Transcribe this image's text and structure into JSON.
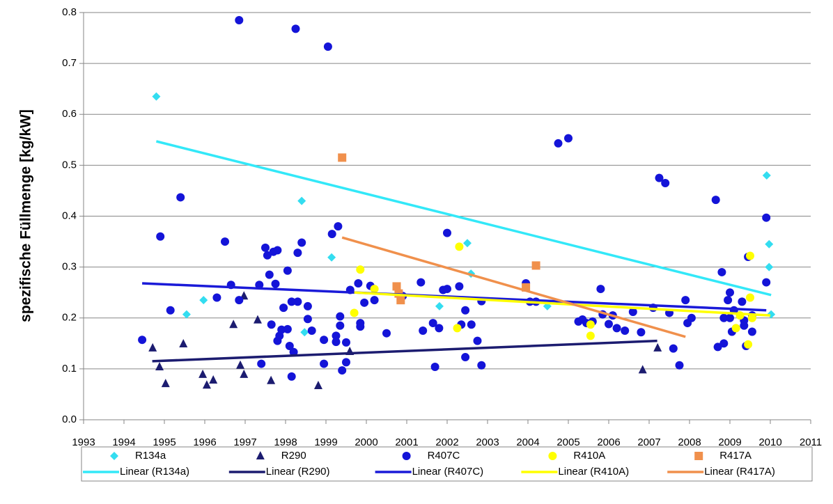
{
  "chart_data": {
    "type": "scatter",
    "y_label": "spezifische Füllmenge [kg/kW]",
    "xlim": [
      1993,
      2011
    ],
    "xticks": [
      1993,
      1994,
      1995,
      1996,
      1997,
      1998,
      1999,
      2000,
      2001,
      2002,
      2003,
      2004,
      2005,
      2006,
      2007,
      2008,
      2009,
      2010,
      2011
    ],
    "ylim": [
      0,
      0.8
    ],
    "yticks": [
      {
        "value": 0,
        "label": "0.0"
      },
      0.1,
      0.2,
      0.3,
      0.4,
      0.5,
      0.6,
      0.7,
      0.8
    ],
    "grid": true,
    "legend": "bottom",
    "series": [
      {
        "name": "R134a",
        "color": "#33ddf0",
        "marker": "diamond",
        "x": [
          1994.8,
          1995.55,
          1995.97,
          1998.4,
          1998.47,
          1999.14,
          2001.81,
          2002.5,
          2002.59,
          2004.48,
          2009.91,
          2009.97,
          2009.97,
          2010.02
        ],
        "values": [
          0.635,
          0.207,
          0.235,
          0.43,
          0.172,
          0.319,
          0.223,
          0.347,
          0.287,
          0.223,
          0.48,
          0.345,
          0.3,
          0.207
        ]
      },
      {
        "name": "R290",
        "color": "#1c1c70",
        "marker": "triangle",
        "x": [
          1994.71,
          1994.88,
          1995.03,
          1995.47,
          1995.95,
          1996.05,
          1996.21,
          1996.71,
          1996.88,
          1996.97,
          1996.97,
          1997.31,
          1997.64,
          1998.81,
          1999.59,
          2006.84,
          2007.21
        ],
        "values": [
          0.141,
          0.104,
          0.071,
          0.149,
          0.089,
          0.068,
          0.078,
          0.187,
          0.107,
          0.243,
          0.089,
          0.196,
          0.077,
          0.067,
          0.134,
          0.098,
          0.141
        ]
      },
      {
        "name": "R407C",
        "color": "#1414d8",
        "marker": "circle",
        "x": [
          1994.45,
          1994.9,
          1995.15,
          1995.4,
          1996.3,
          1996.5,
          1996.65,
          1996.85,
          1996.85,
          1997.35,
          1997.4,
          1997.5,
          1997.55,
          1997.6,
          1997.65,
          1997.7,
          1997.75,
          1997.8,
          1997.8,
          1997.85,
          1997.9,
          1997.95,
          1998.05,
          1998.05,
          1998.1,
          1998.15,
          1998.15,
          1998.2,
          1998.25,
          1998.3,
          1998.3,
          1998.4,
          1998.55,
          1998.55,
          1998.65,
          1998.95,
          1998.95,
          1999.05,
          1999.15,
          1999.25,
          1999.25,
          1999.3,
          1999.35,
          1999.35,
          1999.4,
          1999.5,
          1999.5,
          1999.6,
          1999.8,
          1999.85,
          1999.85,
          1999.95,
          2000.1,
          2000.2,
          2000.5,
          2000.9,
          2001.35,
          2001.4,
          2001.65,
          2001.7,
          2001.8,
          2001.9,
          2002.0,
          2002.0,
          2002.3,
          2002.35,
          2002.45,
          2002.45,
          2002.6,
          2002.75,
          2002.85,
          2002.85,
          2003.95,
          2004.05,
          2004.2,
          2004.75,
          2005.0,
          2005.25,
          2005.35,
          2005.45,
          2005.6,
          2005.8,
          2005.85,
          2006.0,
          2006.1,
          2006.2,
          2006.4,
          2006.6,
          2006.8,
          2007.1,
          2007.25,
          2007.4,
          2007.5,
          2007.6,
          2007.75,
          2007.9,
          2007.95,
          2008.05,
          2008.65,
          2008.7,
          2008.8,
          2008.85,
          2008.85,
          2008.95,
          2009.0,
          2009.0,
          2009.05,
          2009.1,
          2009.3,
          2009.35,
          2009.35,
          2009.4,
          2009.45,
          2009.55,
          2009.55,
          2009.9,
          2009.9
        ],
        "values": [
          0.157,
          0.36,
          0.215,
          0.437,
          0.24,
          0.35,
          0.265,
          0.785,
          0.235,
          0.265,
          0.11,
          0.338,
          0.323,
          0.285,
          0.187,
          0.33,
          0.267,
          0.333,
          0.155,
          0.165,
          0.177,
          0.22,
          0.293,
          0.178,
          0.145,
          0.232,
          0.085,
          0.133,
          0.768,
          0.232,
          0.328,
          0.348,
          0.223,
          0.198,
          0.175,
          0.157,
          0.11,
          0.733,
          0.365,
          0.165,
          0.153,
          0.38,
          0.203,
          0.185,
          0.097,
          0.152,
          0.113,
          0.255,
          0.268,
          0.19,
          0.183,
          0.23,
          0.263,
          0.235,
          0.17,
          0.243,
          0.27,
          0.175,
          0.19,
          0.104,
          0.18,
          0.255,
          0.367,
          0.257,
          0.262,
          0.187,
          0.215,
          0.123,
          0.187,
          0.155,
          0.233,
          0.107,
          0.268,
          0.232,
          0.232,
          0.543,
          0.553,
          0.193,
          0.197,
          0.19,
          0.193,
          0.257,
          0.207,
          0.188,
          0.205,
          0.18,
          0.175,
          0.212,
          0.172,
          0.22,
          0.475,
          0.465,
          0.21,
          0.14,
          0.107,
          0.235,
          0.19,
          0.2,
          0.432,
          0.143,
          0.29,
          0.2,
          0.15,
          0.235,
          0.25,
          0.2,
          0.173,
          0.215,
          0.232,
          0.195,
          0.185,
          0.145,
          0.32,
          0.205,
          0.173,
          0.397,
          0.27
        ]
      },
      {
        "name": "R410A",
        "color": "#ffff00",
        "marker": "circle",
        "x": [
          1999.7,
          1999.85,
          2000.2,
          2002.25,
          2002.3,
          2005.55,
          2005.55,
          2009.15,
          2009.25,
          2009.45,
          2009.5,
          2009.5,
          2009.55
        ],
        "values": [
          0.21,
          0.295,
          0.257,
          0.18,
          0.34,
          0.165,
          0.187,
          0.18,
          0.205,
          0.148,
          0.24,
          0.322,
          0.2
        ]
      },
      {
        "name": "R417A",
        "color": "#f0904c",
        "marker": "square",
        "x": [
          1999.4,
          2000.75,
          2000.8,
          2000.85,
          2003.95,
          2004.2
        ],
        "values": [
          0.515,
          0.262,
          0.248,
          0.235,
          0.26,
          0.303
        ]
      }
    ],
    "trendlines": [
      {
        "name": "Linear (R134a)",
        "color": "#33e8f8",
        "x": [
          1994.8,
          2010.02
        ],
        "values": [
          0.547,
          0.245
        ]
      },
      {
        "name": "Linear (R290)",
        "color": "#1c1c70",
        "x": [
          1994.7,
          2007.2
        ],
        "values": [
          0.115,
          0.155
        ]
      },
      {
        "name": "Linear (R407C)",
        "color": "#1a1ad8",
        "x": [
          1994.45,
          2009.9
        ],
        "values": [
          0.268,
          0.215
        ]
      },
      {
        "name": "Linear (R410A)",
        "color": "#ffff00",
        "x": [
          1999.7,
          2010.0
        ],
        "values": [
          0.25,
          0.205
        ]
      },
      {
        "name": "Linear (R417A)",
        "color": "#f0904c",
        "x": [
          1999.4,
          2007.9
        ],
        "values": [
          0.358,
          0.163
        ]
      }
    ]
  }
}
